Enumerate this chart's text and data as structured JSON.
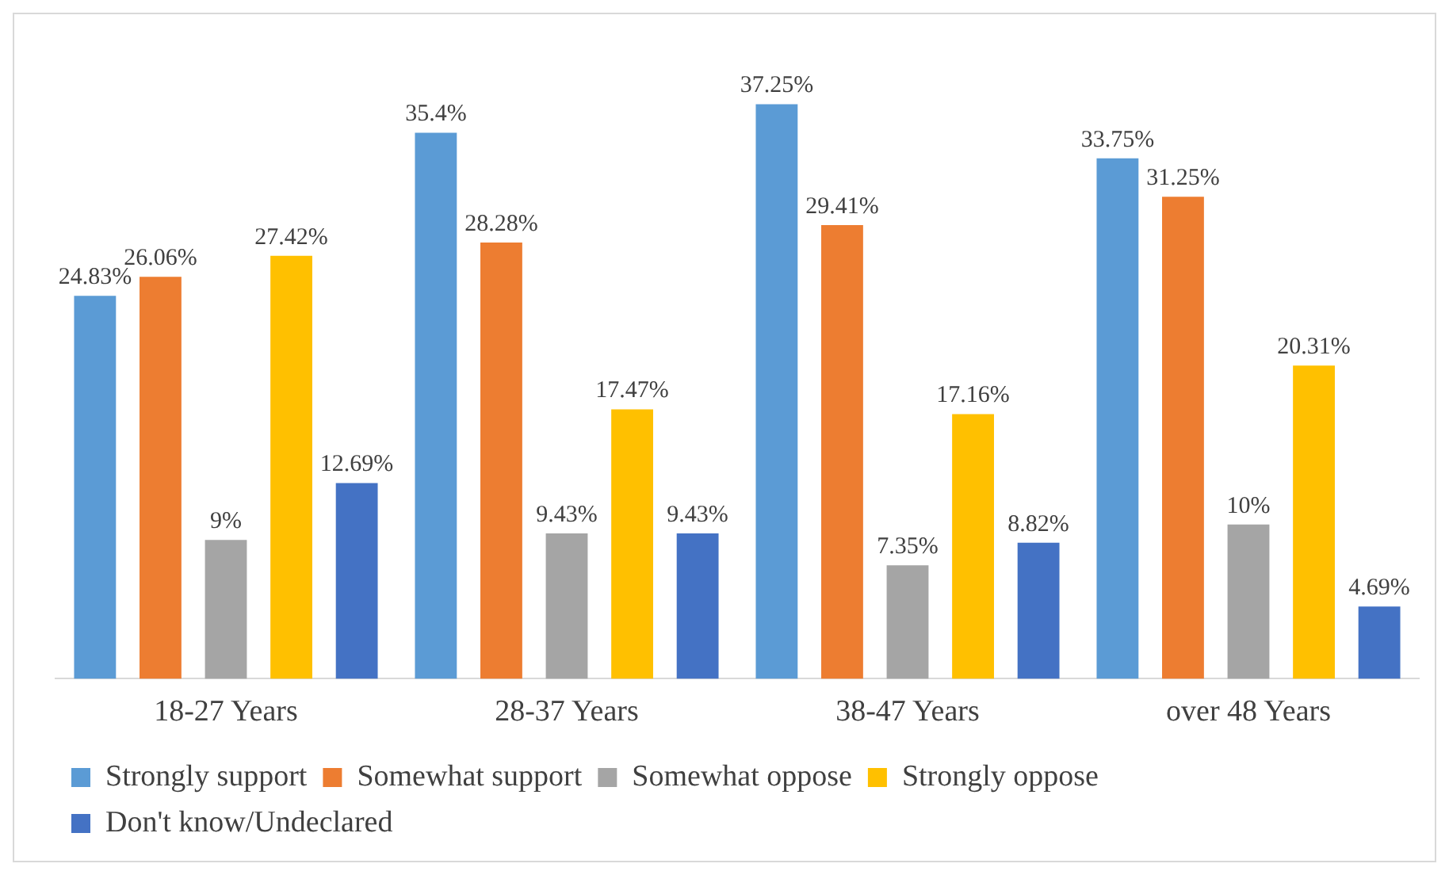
{
  "chart_data": {
    "type": "bar",
    "categories": [
      "18-27 Years",
      "28-37 Years",
      "38-47 Years",
      "over 48 Years"
    ],
    "series": [
      {
        "name": "Strongly support",
        "color": "#5b9bd5",
        "values": [
          24.83,
          35.4,
          37.25,
          33.75
        ],
        "value_labels": [
          "24.83%",
          "35.4%",
          "37.25%",
          "33.75%"
        ]
      },
      {
        "name": "Somewhat support",
        "color": "#ed7d31",
        "values": [
          26.06,
          28.28,
          29.41,
          31.25
        ],
        "value_labels": [
          "26.06%",
          "28.28%",
          "29.41%",
          "31.25%"
        ]
      },
      {
        "name": "Somewhat oppose",
        "color": "#a5a5a5",
        "values": [
          9,
          9.43,
          7.35,
          10
        ],
        "value_labels": [
          "9%",
          "9.43%",
          "7.35%",
          "10%"
        ]
      },
      {
        "name": "Strongly oppose",
        "color": "#ffc000",
        "values": [
          27.42,
          17.47,
          17.16,
          20.31
        ],
        "value_labels": [
          "27.42%",
          "17.47%",
          "17.16%",
          "20.31%"
        ]
      },
      {
        "name": "Don't know/Undeclared",
        "color": "#4472c4",
        "values": [
          12.69,
          9.43,
          8.82,
          4.69
        ],
        "value_labels": [
          "12.69%",
          "9.43%",
          "8.82%",
          "4.69%"
        ]
      }
    ],
    "grid": false,
    "legend": "bottom"
  }
}
